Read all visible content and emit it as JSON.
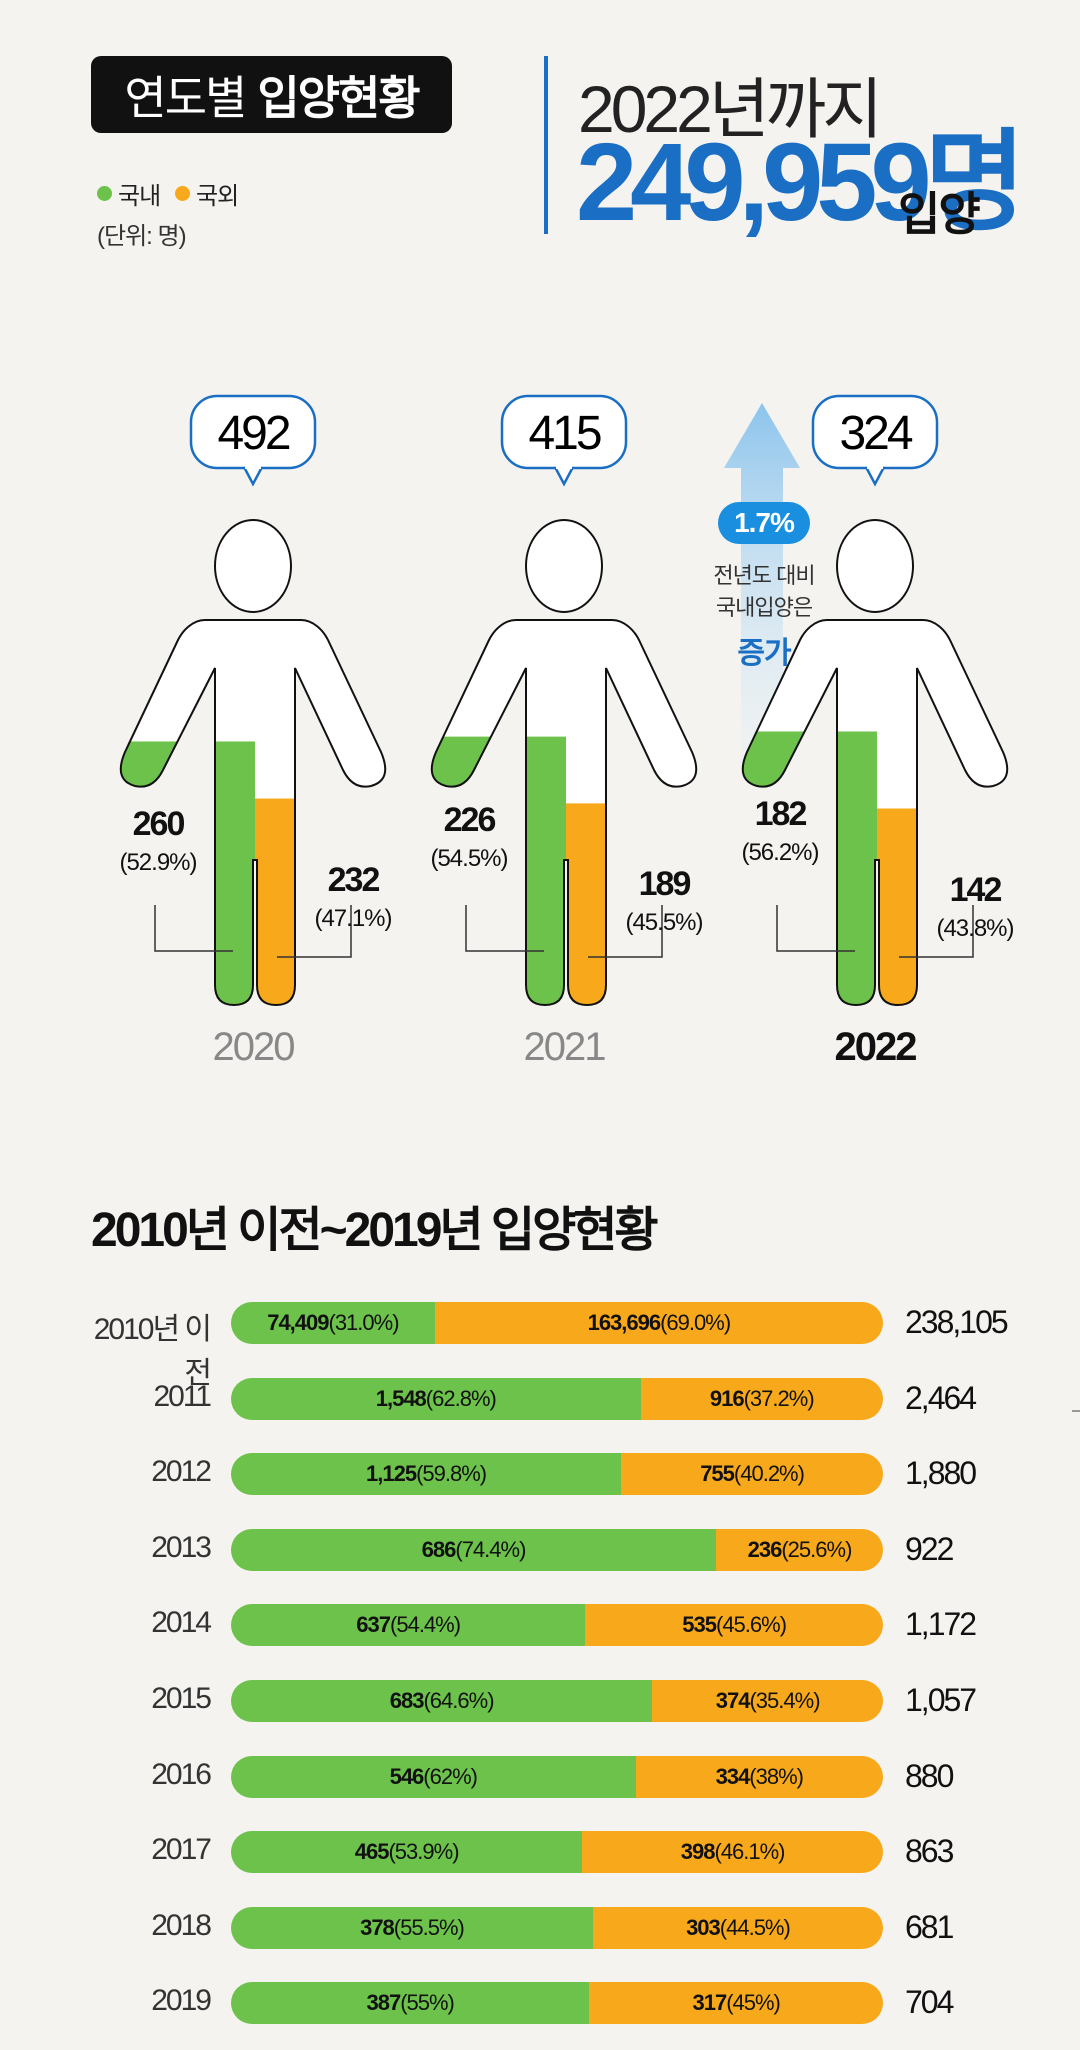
{
  "header": {
    "title_regular": "연도별",
    "title_bold": "입양현황",
    "legend": [
      {
        "label": "국내",
        "color": "#6cc24a"
      },
      {
        "label": "국외",
        "color": "#f7a91b"
      }
    ],
    "unit": "(단위: 명)",
    "headline_prefix": "2022년까지",
    "headline_total": "249,959명",
    "headline_suffix": "입양"
  },
  "colors": {
    "domestic": "#6cc24a",
    "international": "#f7a91b",
    "accent": "#1a6fc4"
  },
  "callout": {
    "badge": "1.7%",
    "line1": "전년도 대비",
    "line2": "국내입양은",
    "emphasis": "증가"
  },
  "table_title": "2010년 이전~2019년 입양현황",
  "chart_data": [
    {
      "type": "bar",
      "categories": [
        "2020",
        "2021",
        "2022"
      ],
      "series": [
        {
          "name": "국내",
          "values": [
            260,
            226,
            182
          ],
          "pct_labels": [
            "(52.9%)",
            "(54.5%)",
            "(56.2%)"
          ],
          "labels": [
            "260",
            "226",
            "182"
          ]
        },
        {
          "name": "국외",
          "values": [
            232,
            189,
            142
          ],
          "pct_labels": [
            "(47.1%)",
            "(45.5%)",
            "(43.8%)"
          ],
          "labels": [
            "232",
            "189",
            "142"
          ]
        }
      ],
      "totals": [
        "492",
        "415",
        "324"
      ]
    },
    {
      "type": "bar",
      "categories": [
        "2010년 이전",
        "2011",
        "2012",
        "2013",
        "2014",
        "2015",
        "2016",
        "2017",
        "2018",
        "2019"
      ],
      "series": [
        {
          "name": "국내",
          "values": [
            74409,
            1548,
            1125,
            686,
            637,
            683,
            546,
            465,
            378,
            387
          ],
          "labels": [
            "74,409",
            "1,548",
            "1,125",
            "686",
            "637",
            "683",
            "546",
            "465",
            "378",
            "387"
          ],
          "pct_labels": [
            "(31.0%)",
            "(62.8%)",
            "(59.8%)",
            "(74.4%)",
            "(54.4%)",
            "(64.6%)",
            "(62%)",
            "(53.9%)",
            "(55.5%)",
            "(55%)"
          ]
        },
        {
          "name": "국외",
          "values": [
            163696,
            916,
            755,
            236,
            535,
            374,
            334,
            398,
            303,
            317
          ],
          "labels": [
            "163,696",
            "916",
            "755",
            "236",
            "535",
            "374",
            "334",
            "398",
            "303",
            "317"
          ],
          "pct_labels": [
            "(69.0%)",
            "(37.2%)",
            "(40.2%)",
            "(25.6%)",
            "(45.6%)",
            "(35.4%)",
            "(38%)",
            "(46.1%)",
            "(44.5%)",
            "(45%)"
          ]
        }
      ],
      "totals": [
        "238,105",
        "2,464",
        "1,880",
        "922",
        "1,172",
        "1,057",
        "880",
        "863",
        "681",
        "704"
      ]
    }
  ]
}
